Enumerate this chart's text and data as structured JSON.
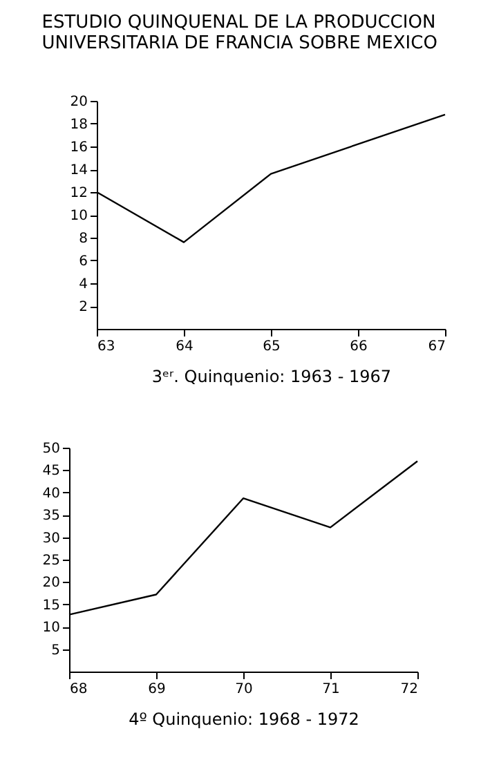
{
  "chart_data": [
    {
      "type": "line",
      "title": [
        "ESTUDIO QUINQUENAL DE LA PRODUCCION",
        "UNIVERSITARIA DE FRANCIA SOBRE MEXICO"
      ],
      "xlabel": "3ᵉʳ. Quinquenio: 1963 - 1967",
      "x": [
        63,
        64,
        65,
        66,
        67
      ],
      "values": [
        12,
        7.6,
        13.6,
        16.2,
        18.8
      ],
      "color": "#000000",
      "xlim": [
        63,
        67
      ],
      "xticks": [
        63,
        64,
        65,
        66,
        67
      ],
      "ylim": [
        0,
        20
      ],
      "yticks": [
        2,
        4,
        6,
        8,
        10,
        12,
        14,
        16,
        18,
        20
      ]
    },
    {
      "type": "line",
      "xlabel": "4º Quinquenio: 1968 - 1972",
      "x": [
        68,
        69,
        70,
        71,
        72
      ],
      "values": [
        12.7,
        17.2,
        38.7,
        32.2,
        47
      ],
      "color": "#000000",
      "xlim": [
        68,
        72
      ],
      "xticks": [
        68,
        69,
        70,
        71,
        72
      ],
      "ylim": [
        0,
        50
      ],
      "yticks": [
        5,
        10,
        15,
        20,
        25,
        30,
        35,
        40,
        45,
        50
      ]
    }
  ]
}
